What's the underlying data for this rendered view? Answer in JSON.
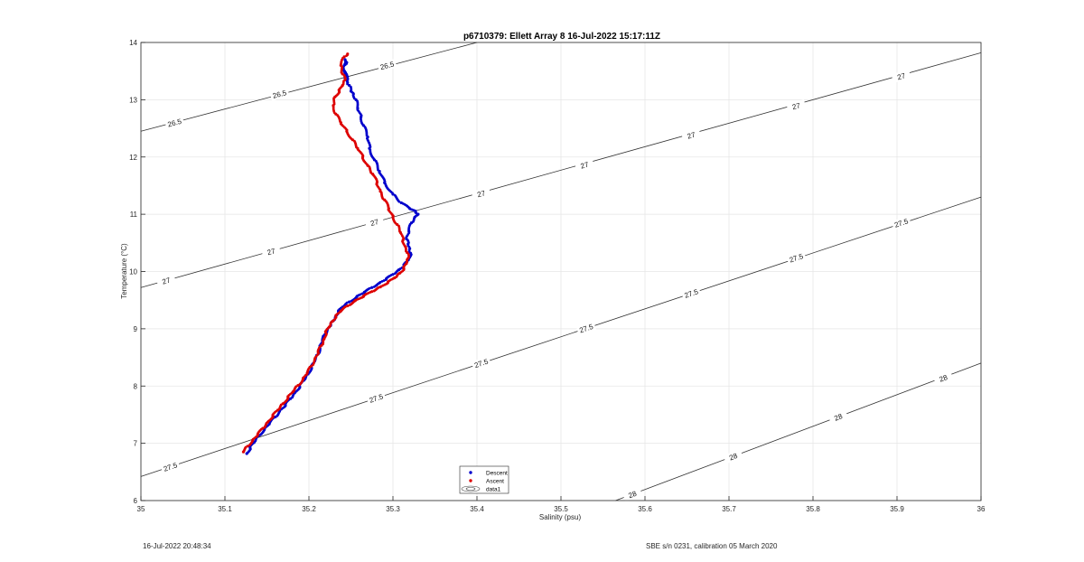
{
  "footer": {
    "left": "16-Jul-2022 20:48:34",
    "right": "SBE s/n 0231, calibration 05 March 2020"
  },
  "chart_data": {
    "type": "scatter",
    "title": "p6710379: Ellett Array 8 16-Jul-2022 15:17:11Z",
    "xlabel": "Salinity (psu)",
    "ylabel": "Temperature (°C)",
    "xlim": [
      35,
      36
    ],
    "ylim": [
      6,
      14
    ],
    "xticks": [
      "35",
      "35.1",
      "35.2",
      "35.3",
      "35.4",
      "35.5",
      "35.6",
      "35.7",
      "35.8",
      "35.9",
      "36"
    ],
    "yticks": [
      "6",
      "7",
      "8",
      "9",
      "10",
      "11",
      "12",
      "13",
      "14"
    ],
    "grid": true,
    "legend": {
      "placement": "bottom-center",
      "entries": [
        {
          "label": "Descent",
          "color": "#0000cc",
          "marker": "dot"
        },
        {
          "label": "Ascent",
          "color": "#dd0000",
          "marker": "dot"
        },
        {
          "label": "data1",
          "color": "#444444",
          "marker": "contour"
        }
      ]
    },
    "contours": [
      {
        "level": "26.5",
        "points": [
          [
            35,
            12.45
          ],
          [
            35.4,
            14.0
          ]
        ],
        "label_positions": [
          [
            35.04,
            12.6
          ],
          [
            35.165,
            13.1
          ],
          [
            35.293,
            13.6
          ]
        ]
      },
      {
        "level": "27",
        "points": [
          [
            35,
            9.72
          ],
          [
            36,
            13.82
          ]
        ],
        "label_positions": [
          [
            35.03,
            9.84
          ],
          [
            35.155,
            10.35
          ],
          [
            35.278,
            10.86
          ],
          [
            35.405,
            11.36
          ],
          [
            35.528,
            11.86
          ],
          [
            35.655,
            12.38
          ],
          [
            35.78,
            12.89
          ],
          [
            35.905,
            13.41
          ]
        ]
      },
      {
        "level": "27.5",
        "points": [
          [
            35,
            6.42
          ],
          [
            36,
            11.3
          ]
        ],
        "label_positions": [
          [
            35.035,
            6.59
          ],
          [
            35.28,
            7.79
          ],
          [
            35.405,
            8.4
          ],
          [
            35.53,
            9.01
          ],
          [
            35.655,
            9.62
          ],
          [
            35.78,
            10.24
          ],
          [
            35.905,
            10.85
          ]
        ]
      },
      {
        "level": "28",
        "points": [
          [
            35.565,
            6.0
          ],
          [
            36,
            8.4
          ]
        ],
        "label_positions": [
          [
            35.585,
            6.11
          ],
          [
            35.705,
            6.77
          ],
          [
            35.83,
            7.46
          ],
          [
            35.955,
            8.14
          ]
        ]
      }
    ],
    "series": [
      {
        "name": "Descent",
        "color": "#0000cc",
        "x": [
          35.126,
          35.13,
          35.135,
          35.14,
          35.147,
          35.153,
          35.16,
          35.165,
          35.172,
          35.178,
          35.183,
          35.189,
          35.194,
          35.199,
          35.203,
          35.207,
          35.211,
          35.213,
          35.216,
          35.219,
          35.222,
          35.226,
          35.229,
          35.232,
          35.235,
          35.24,
          35.248,
          35.257,
          35.266,
          35.275,
          35.284,
          35.292,
          35.3,
          35.307,
          35.313,
          35.317,
          35.32,
          35.321,
          35.32,
          35.318,
          35.316,
          35.319,
          35.322,
          35.326,
          35.33,
          35.327,
          35.32,
          35.31,
          35.3,
          35.29,
          35.284,
          35.278,
          35.272,
          35.27,
          35.265,
          35.262,
          35.258,
          35.256,
          35.253,
          35.25,
          35.248,
          35.246,
          35.243,
          35.24,
          35.245,
          35.243,
          35.241,
          35.246
        ],
        "y": [
          6.82,
          6.92,
          7.02,
          7.13,
          7.24,
          7.35,
          7.46,
          7.56,
          7.67,
          7.78,
          7.88,
          7.99,
          8.1,
          8.21,
          8.33,
          8.44,
          8.56,
          8.68,
          8.8,
          8.9,
          8.99,
          9.07,
          9.14,
          9.22,
          9.3,
          9.38,
          9.47,
          9.56,
          9.64,
          9.72,
          9.8,
          9.87,
          9.95,
          10.03,
          10.1,
          10.18,
          10.25,
          10.32,
          10.4,
          10.48,
          10.57,
          10.7,
          10.85,
          10.95,
          11.0,
          11.05,
          11.1,
          11.2,
          11.35,
          11.55,
          11.75,
          11.95,
          12.15,
          12.35,
          12.55,
          12.7,
          12.85,
          13.0,
          13.1,
          13.15,
          13.25,
          13.3,
          13.4,
          13.55,
          13.65,
          13.7,
          13.55,
          13.35
        ]
      },
      {
        "name": "Ascent",
        "color": "#dd0000",
        "x": [
          35.122,
          35.127,
          35.133,
          35.139,
          35.145,
          35.151,
          35.157,
          35.163,
          35.169,
          35.175,
          35.181,
          35.187,
          35.193,
          35.198,
          35.203,
          35.207,
          35.211,
          35.215,
          35.218,
          35.22,
          35.224,
          35.228,
          35.232,
          35.238,
          35.246,
          35.255,
          35.265,
          35.275,
          35.285,
          35.294,
          35.302,
          35.308,
          35.313,
          35.316,
          35.318,
          35.317,
          35.315,
          35.312,
          35.309,
          35.305,
          35.3,
          35.295,
          35.29,
          35.285,
          35.281,
          35.276,
          35.27,
          35.264,
          35.258,
          35.252,
          35.245,
          35.238,
          35.232,
          35.229,
          35.231,
          35.236,
          35.24,
          35.243,
          35.24,
          35.238,
          35.242,
          35.246
        ],
        "y": [
          6.85,
          6.95,
          7.05,
          7.15,
          7.26,
          7.37,
          7.48,
          7.58,
          7.69,
          7.8,
          7.9,
          8.01,
          8.12,
          8.23,
          8.35,
          8.47,
          8.59,
          8.71,
          8.82,
          8.93,
          9.03,
          9.13,
          9.22,
          9.31,
          9.4,
          9.49,
          9.57,
          9.65,
          9.73,
          9.81,
          9.89,
          9.97,
          10.05,
          10.14,
          10.23,
          10.33,
          10.43,
          10.55,
          10.68,
          10.82,
          10.95,
          11.1,
          11.25,
          11.4,
          11.55,
          11.7,
          11.85,
          12.0,
          12.15,
          12.3,
          12.45,
          12.6,
          12.75,
          12.9,
          13.05,
          13.15,
          13.25,
          13.35,
          13.45,
          13.6,
          13.75,
          13.8
        ]
      }
    ]
  }
}
